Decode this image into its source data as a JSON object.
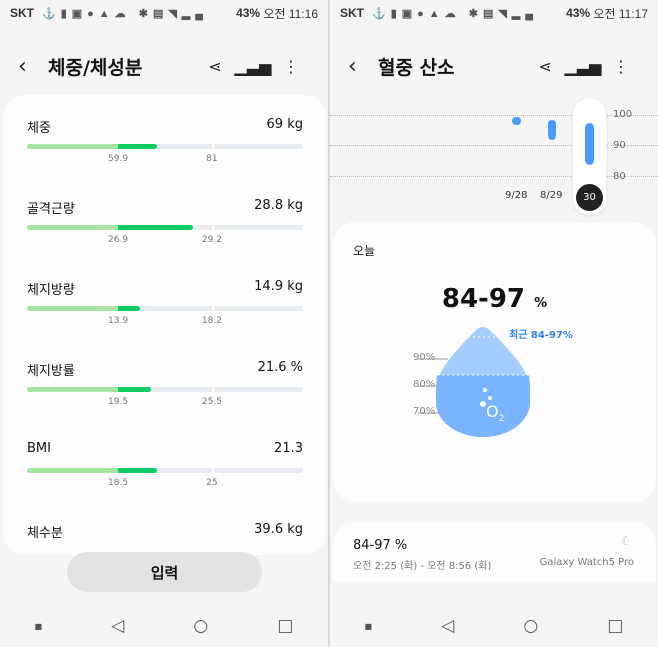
{
  "left": {
    "status": {
      "carrier": "SKT",
      "battery": "43%",
      "time": "오전 11:16"
    },
    "header": {
      "title": "체중/체성분"
    },
    "rows": [
      {
        "label": "체중",
        "value": "69 kg",
        "low": "59.9",
        "high": "81",
        "fill_pct": 47
      },
      {
        "label": "골격근량",
        "value": "28.8 kg",
        "low": "26.9",
        "high": "29.2",
        "fill_pct": 60
      },
      {
        "label": "체지방량",
        "value": "14.9 kg",
        "low": "13.9",
        "high": "18.2",
        "fill_pct": 41
      },
      {
        "label": "체지방률",
        "value": "21.6 %",
        "low": "19.5",
        "high": "25.5",
        "fill_pct": 45
      },
      {
        "label": "BMI",
        "value": "21.3",
        "low": "18.5",
        "high": "25",
        "fill_pct": 47
      },
      {
        "label": "체수분",
        "value": "39.6 kg"
      }
    ],
    "button": "입력"
  },
  "right": {
    "status": {
      "carrier": "SKT",
      "battery": "43%",
      "time": "오전 11:17"
    },
    "header": {
      "title": "혈중 산소"
    },
    "chart": {
      "y_ticks": [
        "100",
        "90",
        "80"
      ],
      "x_labels": [
        "9/28",
        "8/29",
        "30"
      ],
      "points": [
        {
          "date": "9/28",
          "min": 98,
          "max": 98
        },
        {
          "date": "8/29",
          "min": 93,
          "max": 97
        },
        {
          "date": "30",
          "min": 85,
          "max": 96
        }
      ]
    },
    "today": {
      "label": "오늘",
      "value": "84-97",
      "unit": "%",
      "recent": "최근 84-97%",
      "levels": [
        "90%",
        "80%",
        "70%"
      ],
      "o2": "O",
      "o2_sub": "2"
    },
    "record": {
      "value": "84-97 %",
      "time": "오전 2:25 (화) - 오전 8:56 (화)",
      "device": "Galaxy Watch5 Pro"
    }
  },
  "colors": {
    "green_dark": "#0fcc66",
    "green_light": "#a5e3a2",
    "blue": "#4b9bff"
  }
}
